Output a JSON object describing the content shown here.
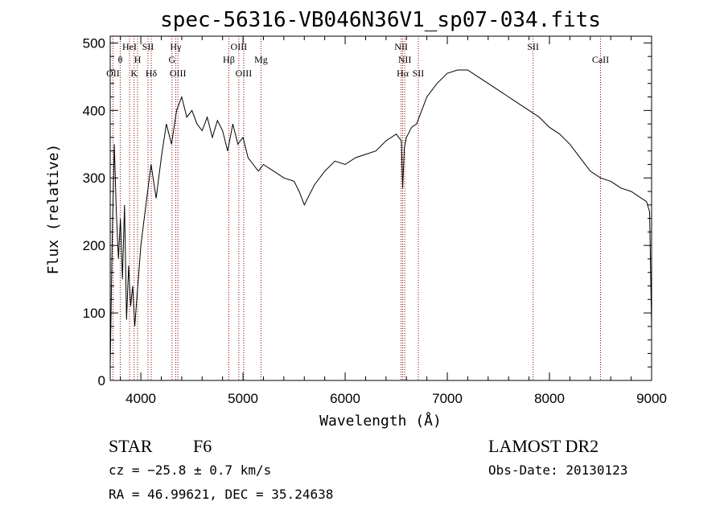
{
  "chart_data": {
    "type": "line",
    "title": "spec-56316-VB046N36V1_sp07-034.fits",
    "xlabel": "Wavelength (Å)",
    "ylabel": "Flux (relative)",
    "xlim": [
      3700,
      9000
    ],
    "ylim": [
      0,
      510
    ],
    "xticks": [
      4000,
      5000,
      6000,
      7000,
      8000,
      9000
    ],
    "yticks": [
      0,
      100,
      200,
      300,
      400,
      500
    ],
    "series": [
      {
        "x": [
          3700,
          3720,
          3740,
          3760,
          3780,
          3800,
          3820,
          3840,
          3860,
          3880,
          3900,
          3920,
          3940,
          3960,
          3980,
          4000,
          4050,
          4100,
          4150,
          4200,
          4250,
          4300,
          4350,
          4400,
          4450,
          4500,
          4550,
          4600,
          4650,
          4700,
          4750,
          4800,
          4850,
          4900,
          4950,
          5000,
          5050,
          5100,
          5150,
          5200,
          5300,
          5400,
          5500,
          5550,
          5600,
          5650,
          5700,
          5800,
          5900,
          6000,
          6100,
          6200,
          6300,
          6400,
          6500,
          6550,
          6563,
          6580,
          6600,
          6650,
          6700,
          6750,
          6800,
          6900,
          7000,
          7100,
          7200,
          7300,
          7400,
          7500,
          7600,
          7700,
          7800,
          7900,
          8000,
          8100,
          8200,
          8300,
          8400,
          8500,
          8600,
          8700,
          8800,
          8900,
          8950,
          8980,
          9000
        ],
        "y": [
          20,
          210,
          350,
          250,
          180,
          240,
          150,
          260,
          90,
          170,
          110,
          140,
          80,
          120,
          160,
          200,
          260,
          320,
          270,
          330,
          380,
          350,
          400,
          420,
          390,
          400,
          380,
          370,
          390,
          360,
          385,
          370,
          340,
          380,
          350,
          360,
          330,
          320,
          310,
          320,
          310,
          300,
          295,
          280,
          260,
          275,
          290,
          310,
          325,
          320,
          330,
          335,
          340,
          355,
          365,
          355,
          285,
          345,
          360,
          375,
          380,
          400,
          420,
          440,
          455,
          460,
          460,
          450,
          440,
          430,
          420,
          410,
          400,
          390,
          375,
          365,
          350,
          330,
          310,
          300,
          295,
          285,
          280,
          270,
          265,
          250,
          80
        ]
      }
    ],
    "lines": [
      {
        "label": "OII",
        "x": 3727,
        "row": 3
      },
      {
        "label": "θ",
        "x": 3798,
        "row": 2
      },
      {
        "label": "HeI",
        "x": 3889,
        "row": 1
      },
      {
        "label": "K",
        "x": 3934,
        "row": 3
      },
      {
        "label": "H",
        "x": 3968,
        "row": 2
      },
      {
        "label": "SII",
        "x": 4070,
        "row": 1
      },
      {
        "label": "Hδ",
        "x": 4102,
        "row": 3
      },
      {
        "label": "G",
        "x": 4305,
        "row": 2
      },
      {
        "label": "Hγ",
        "x": 4341,
        "row": 1
      },
      {
        "label": "OIII",
        "x": 4363,
        "row": 3
      },
      {
        "label": "Hβ",
        "x": 4861,
        "row": 2
      },
      {
        "label": "OIII",
        "x": 4959,
        "row": 1
      },
      {
        "label": "OIII",
        "x": 5007,
        "row": 3
      },
      {
        "label": "Mg",
        "x": 5176,
        "row": 2
      },
      {
        "label": "NII",
        "x": 6548,
        "row": 1
      },
      {
        "label": "Hα",
        "x": 6563,
        "row": 3
      },
      {
        "label": "NII",
        "x": 6583,
        "row": 2
      },
      {
        "label": "SII",
        "x": 6716,
        "row": 3
      },
      {
        "label": "SII",
        "x": 7840,
        "row": 1
      },
      {
        "label": "CaII",
        "x": 8500,
        "row": 2
      }
    ],
    "grid": false,
    "line_color": "#000000",
    "marker_line_color": "#8b0000"
  },
  "info": {
    "object_class": "STAR",
    "subclass": "F6",
    "redshift": "cz = −25.8 ± 0.7 km/s",
    "coords": "RA =  46.99621, DEC =  35.24638",
    "survey": "LAMOST DR2",
    "obs_date": "Obs-Date: 20130123"
  }
}
